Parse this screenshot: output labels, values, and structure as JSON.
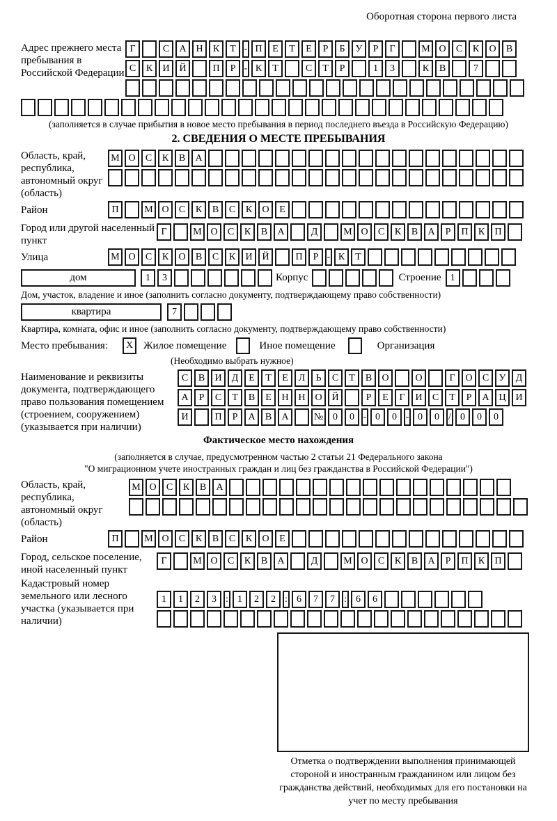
{
  "header": {
    "side_note": "Оборотная сторона первого листа"
  },
  "prev_address": {
    "label": "Адрес прежнего места пребывания в Российской Федерации",
    "rows": [
      {
        "text": "Г САНКТ-ПЕТЕРБУРГ МОСКОВ",
        "len": 24
      },
      {
        "text": "СКИЙ ПР-КТ СТР 13 КВ 7",
        "len": 24
      },
      {
        "text": "",
        "len": 24
      },
      {
        "text": "",
        "len": 29
      }
    ],
    "caption": "(заполняется в случае прибытия в новое место пребывания в период последнего въезда в Российскую Федерацию)"
  },
  "section2": {
    "title": "2. СВЕДЕНИЯ О МЕСТЕ ПРЕБЫВАНИЯ",
    "oblast": {
      "label": "Область, край, республика, автономный округ (область)",
      "rows": [
        {
          "text": "МОСКВА",
          "len": 25
        },
        {
          "text": "",
          "len": 25
        }
      ]
    },
    "rayon": {
      "label": "Район",
      "row": {
        "text": "П МОСКВСКОЕ",
        "len": 25
      }
    },
    "gorod": {
      "label": "Город или другой населенный пункт",
      "row": {
        "text": "Г МОСКВА Д МОСКВАРПКП",
        "len": 22
      }
    },
    "ulitsa": {
      "label": "Улица",
      "row": {
        "text": "МОСКОВСКИЙ ПР-КТ",
        "len": 25
      }
    },
    "dom": {
      "box_label": "дом",
      "row": {
        "text": "13",
        "len": 8
      },
      "korpus_label": "Корпус",
      "korpus_row": {
        "text": "",
        "len": 5
      },
      "stroenie_label": "Строение",
      "stroenie_row": {
        "text": "1",
        "len": 4
      },
      "caption": "Дом, участок, владение и иное (заполнить согласно документу, подтверждающему право собственности)"
    },
    "kvartira": {
      "box_label": "квартира",
      "row": {
        "text": "7",
        "len": 4
      },
      "caption": "Квартира, комната, офис и иное (заполнить согласно документу, подтверждающему право собственности)"
    },
    "mesto": {
      "label": "Место пребывания:",
      "checkbox_zhiloe": "X",
      "zhiloe_label": "Жилое помещение",
      "checkbox_inoe": "",
      "inoe_label": "Иное помещение",
      "checkbox_org": "",
      "org_label": "Организация",
      "note": "(Необходимо выбрать нужное)"
    },
    "doc": {
      "label": "Наименование и реквизиты документа, подтверждающего право пользования помещением (строением, сооружением) (указывается при наличии)",
      "rows": [
        {
          "text": "СВИДЕТЕЛЬСТВО О ГОСУД",
          "len": 21
        },
        {
          "text": "АРСТВЕННОЙ РЕГИСТРАЦИ",
          "len": 21
        },
        {
          "text": "И ПРАВА №00-00-00/000",
          "len": 21
        }
      ]
    }
  },
  "fact": {
    "title": "Фактическое место нахождения",
    "caption_line1": "(заполняется в случае, предусмотренном частью 2 статьи 21 Федерального закона",
    "caption_line2": "\"О миграционном учете иностранных граждан и лиц без гражданства в Российской Федерации\")",
    "oblast": {
      "label": "Область, край, республика, автономный округ (область)",
      "rows": [
        {
          "text": "МОСКВА",
          "len": 23
        },
        {
          "text": "",
          "len": 24
        }
      ]
    },
    "rayon": {
      "label": "Район",
      "row": {
        "text": "П МОСКВСКОЕ",
        "len": 25
      }
    },
    "gorod": {
      "label": "Город, сельское поселение, иной населенный пункт",
      "row": {
        "text": "Г МОСКВА Д МОСКВАРПКП",
        "len": 22
      }
    },
    "kadastr": {
      "label": "Кадастровый номер земельного или лесного участка (указывается при наличии)",
      "rows": [
        {
          "text": "1123:122:677:66",
          "len": 21
        },
        {
          "text": "",
          "len": 22
        }
      ]
    }
  },
  "stamp": {
    "caption": "Отметка о подтверждении выполнения принимающей стороной и иностранным гражданином или лицом без гражданства действий, необходимых для его постановки на учет по месту пребывания"
  },
  "colors": {
    "ink": "#000000",
    "box_border": "#161616",
    "paper": "#ffffff"
  }
}
